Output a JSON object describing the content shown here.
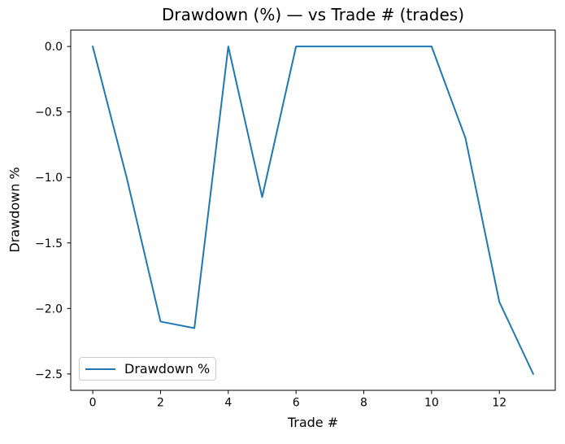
{
  "window": {
    "background": "#ffffff"
  },
  "chart_data": {
    "type": "line",
    "title": "Drawdown (%) — vs Trade # (trades)",
    "xlabel": "Trade #",
    "ylabel": "Drawdown %",
    "x": [
      0,
      1,
      2,
      3,
      4,
      5,
      6,
      7,
      8,
      9,
      10,
      11,
      12,
      13
    ],
    "series": [
      {
        "name": "Drawdown %",
        "color": "#1f77b4",
        "values": [
          0.0,
          -1.0,
          -2.1,
          -2.15,
          0.0,
          -1.15,
          0.0,
          0.0,
          0.0,
          0.0,
          0.0,
          -0.7,
          -1.95,
          -2.5
        ]
      }
    ],
    "xlim": [
      -0.65,
      13.65
    ],
    "ylim": [
      -2.625,
      0.125
    ],
    "xticks": [
      0,
      2,
      4,
      6,
      8,
      10,
      12
    ],
    "xtick_labels": [
      "0",
      "2",
      "4",
      "6",
      "8",
      "10",
      "12"
    ],
    "yticks": [
      0,
      -0.5,
      -1,
      -1.5,
      -2,
      -2.5
    ],
    "ytick_labels": [
      "0.0",
      "−0.5",
      "−1.0",
      "−1.5",
      "−2.0",
      "−2.5"
    ],
    "grid": false,
    "legend": {
      "position": "lower-left",
      "entries": [
        {
          "label": "Drawdown %",
          "color": "#1f77b4"
        }
      ]
    },
    "axis_color": "#000000",
    "text_color": "#000000"
  }
}
